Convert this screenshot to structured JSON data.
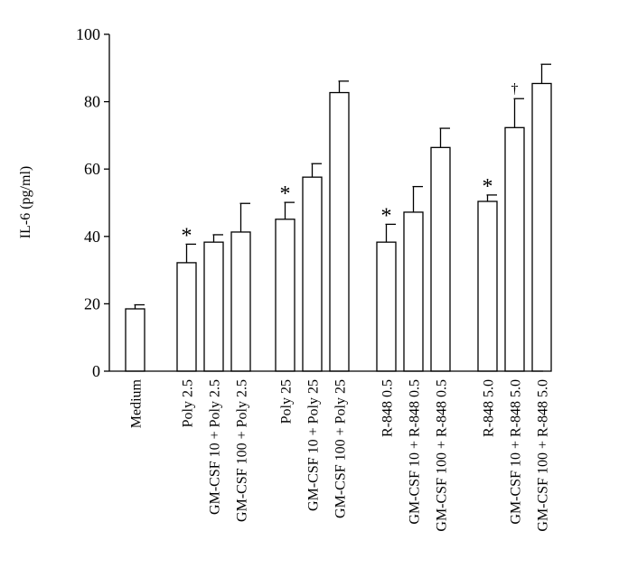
{
  "chart_data": {
    "type": "bar",
    "title": "",
    "xlabel": "",
    "ylabel": "IL-6 (pg/ml)",
    "ylim": [
      0,
      100
    ],
    "yticks": [
      0,
      20,
      40,
      60,
      80,
      100
    ],
    "grid": false,
    "legend": "none",
    "bar_fill": "#ffffff",
    "bar_stroke": "#000000",
    "groups": [
      {
        "bars": [
          {
            "label": "Medium",
            "value": 18.5,
            "error": 1.2,
            "marker": ""
          }
        ]
      },
      {
        "bars": [
          {
            "label": "Poly 2.5",
            "value": 32.2,
            "error": 5.5,
            "marker": "*"
          },
          {
            "label": "GM-CSF 10 + Poly 2.5",
            "value": 38.3,
            "error": 2.2,
            "marker": ""
          },
          {
            "label": "GM-CSF 100 + Poly 2.5",
            "value": 41.3,
            "error": 8.5,
            "marker": ""
          }
        ]
      },
      {
        "bars": [
          {
            "label": "Poly 25",
            "value": 45.1,
            "error": 5.0,
            "marker": "*"
          },
          {
            "label": "GM-CSF 10 + Poly 25",
            "value": 57.6,
            "error": 4.0,
            "marker": ""
          },
          {
            "label": "GM-CSF 100 + Poly 25",
            "value": 82.7,
            "error": 3.4,
            "marker": ""
          }
        ]
      },
      {
        "bars": [
          {
            "label": "R-848 0.5",
            "value": 38.3,
            "error": 5.3,
            "marker": "*"
          },
          {
            "label": "GM-CSF 10 + R-848 0.5",
            "value": 47.2,
            "error": 7.6,
            "marker": ""
          },
          {
            "label": "GM-CSF 100 + R-848 0.5",
            "value": 66.4,
            "error": 5.7,
            "marker": ""
          }
        ]
      },
      {
        "bars": [
          {
            "label": "R-848 5.0",
            "value": 50.4,
            "error": 1.9,
            "marker": "*"
          },
          {
            "label": "GM-CSF 10 + R-848 5.0",
            "value": 72.3,
            "error": 8.6,
            "marker": "†"
          },
          {
            "label": "GM-CSF 100 + R-848 5.0",
            "value": 85.4,
            "error": 5.7,
            "marker": ""
          }
        ]
      }
    ]
  }
}
